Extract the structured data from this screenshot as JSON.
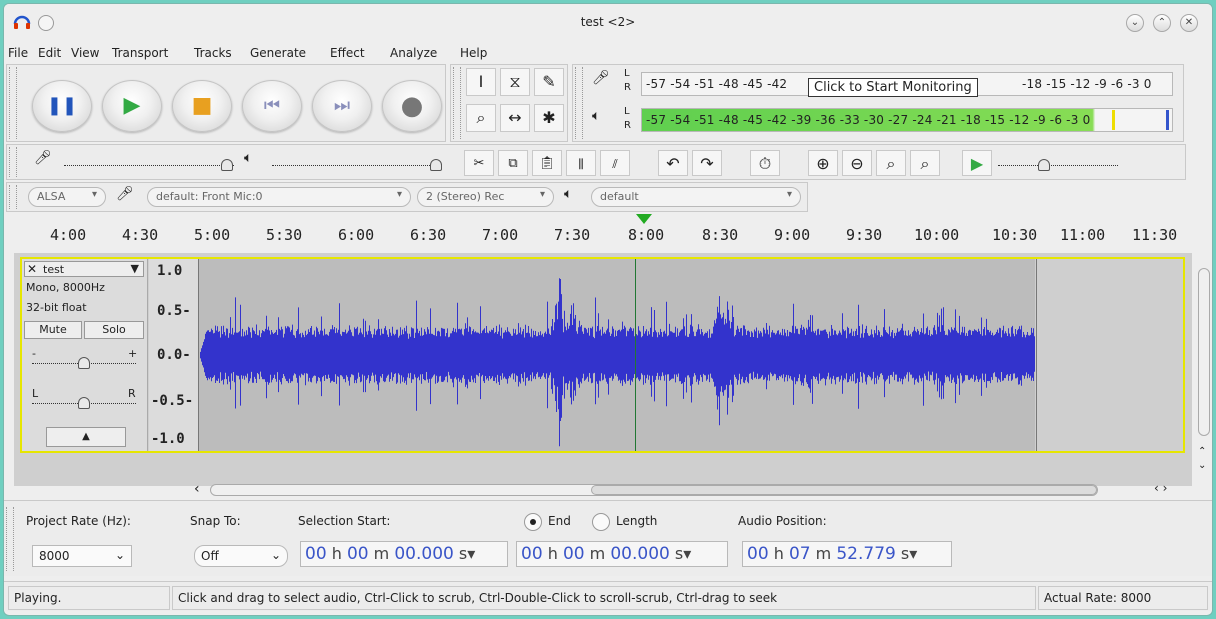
{
  "window": {
    "title": "test <2>"
  },
  "menu": [
    "File",
    "Edit",
    "View",
    "Transport",
    "Tracks",
    "Generate",
    "Effect",
    "Analyze",
    "Help"
  ],
  "meters": {
    "record_scale": "-57 -54 -51 -48 -45 -42",
    "record_scale_right": "-18 -15 -12  -9   -6   -3   0",
    "play_scale": "-57 -54 -51 -48 -45 -42 -39 -36 -33 -30 -27 -24 -21 -18 -15 -12  -9   -6   -3   0",
    "tooltip": "Click to Start Monitoring",
    "lr_top": "L",
    "lr_bottom": "R"
  },
  "device": {
    "host": "ALSA",
    "input_device": "default: Front Mic:0",
    "channels": "2 (Stereo) Rec",
    "output_device": "default"
  },
  "ruler": {
    "ticks": [
      "4:00",
      "4:30",
      "5:00",
      "5:30",
      "6:00",
      "6:30",
      "7:00",
      "7:30",
      "8:00",
      "8:30",
      "9:00",
      "9:30",
      "10:00",
      "10:30",
      "11:00",
      "11:30"
    ]
  },
  "track": {
    "name": "test",
    "format": "Mono, 8000Hz",
    "bitdepth": "32-bit float",
    "mute_label": "Mute",
    "solo_label": "Solo",
    "gain_minus": "-",
    "gain_plus": "+",
    "pan_left": "L",
    "pan_right": "R",
    "y_ticks": [
      "1.0",
      "0.5-",
      "0.0-",
      "-0.5-",
      "-1.0"
    ]
  },
  "selection_toolbar": {
    "project_rate_label": "Project Rate (Hz):",
    "project_rate_value": "8000",
    "snap_to_label": "Snap To:",
    "snap_to_value": "Off",
    "selection_start_label": "Selection Start:",
    "end_label": "End",
    "length_label": "Length",
    "audio_position_label": "Audio Position:",
    "start_time": {
      "h": "00",
      "m": "00",
      "s": "00.000"
    },
    "end_time": {
      "h": "00",
      "m": "00",
      "s": "00.000"
    },
    "audio_position": {
      "h": "00",
      "m": "07",
      "s": "52.779"
    }
  },
  "status": {
    "state": "Playing.",
    "hint": "Click and drag to select audio, Ctrl-Click to scrub, Ctrl-Double-Click to scroll-scrub, Ctrl-drag to seek",
    "actual_rate": "Actual Rate: 8000"
  },
  "colors": {
    "waveform": "#3333cc",
    "playhead": "#22aa22",
    "track_border": "#e6e600",
    "meter_green": "#88dd55"
  }
}
